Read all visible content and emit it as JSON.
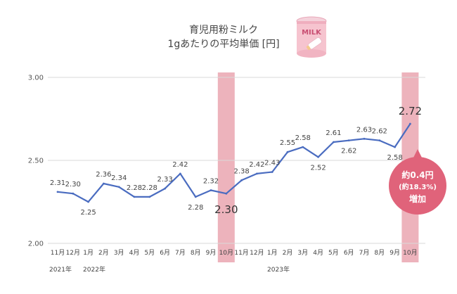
{
  "title_lines": [
    "育児用粉ミルク",
    "1gあたりの平均単価 [円]"
  ],
  "colors": {
    "line": "#4a6cc0",
    "highlight": "#e79aa6",
    "callout": "#e0637a",
    "grid": "#d9d9d9"
  },
  "year_labels": [
    "2021年",
    "2022年",
    "2023年"
  ],
  "callout": {
    "line1": "約0.4円",
    "line2": "(約18.3%)",
    "line3": "増加"
  },
  "icon": {
    "name": "milk-can-icon",
    "text": "MILK"
  },
  "chart_data": {
    "type": "line",
    "ylim": [
      2.0,
      3.0
    ],
    "y_ticks": [
      "2.00",
      "2.50",
      "3.00"
    ],
    "categories": [
      "11月",
      "12月",
      "1月",
      "2月",
      "3月",
      "4月",
      "5月",
      "6月",
      "7月",
      "8月",
      "9月",
      "10月",
      "11月",
      "12月",
      "1月",
      "2月",
      "3月",
      "4月",
      "5月",
      "6月",
      "7月",
      "8月",
      "9月",
      "10月"
    ],
    "values": [
      2.31,
      2.3,
      2.25,
      2.36,
      2.34,
      2.28,
      2.28,
      2.33,
      2.42,
      2.28,
      2.32,
      2.3,
      2.38,
      2.42,
      2.43,
      2.55,
      2.58,
      2.52,
      2.61,
      2.62,
      2.63,
      2.62,
      2.58,
      2.72
    ],
    "data_labels": [
      "2.31",
      "2.30",
      "2.25",
      "2.36",
      "2.34",
      "2.28",
      "2.28",
      "2.33",
      "2.42",
      "2.28",
      "2.32",
      "2.30",
      "2.38",
      "2.42",
      "2.43",
      "2.55",
      "2.58",
      "2.52",
      "2.61",
      "2.62",
      "2.63",
      "2.62",
      "2.58",
      "2.72"
    ],
    "highlighted_indices": [
      11,
      23
    ]
  }
}
